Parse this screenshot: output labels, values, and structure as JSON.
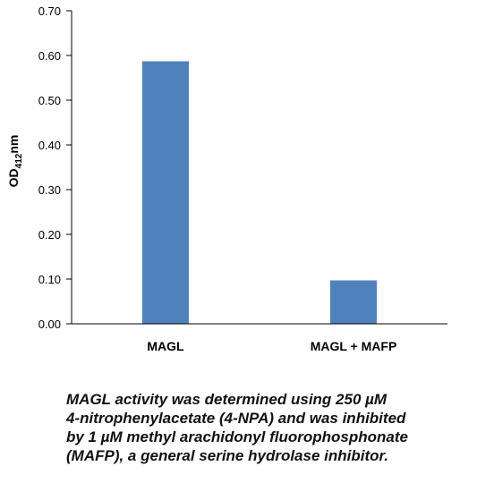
{
  "chart_data": {
    "type": "bar",
    "categories": [
      "MAGL",
      "MAGL + MAFP"
    ],
    "series": [
      {
        "values": [
          0.587,
          0.097
        ],
        "color": "#4f81bd"
      }
    ],
    "ylabel": {
      "main": "OD",
      "sub": "412",
      "suffix": "nm"
    },
    "ylim": [
      0,
      0.7
    ],
    "y_ticks": [
      "0.00",
      "0.10",
      "0.20",
      "0.30",
      "0.40",
      "0.50",
      "0.60",
      "0.70"
    ],
    "grid": false,
    "legend": "none"
  },
  "caption": {
    "lines": [
      "MAGL activity was determined using 250 µM",
      "4-nitrophenylacetate (4-NPA) and was inhibited",
      "by 1 µM methyl arachidonyl fluorophosphonate",
      "(MAFP), a general serine hydrolase inhibitor."
    ]
  }
}
